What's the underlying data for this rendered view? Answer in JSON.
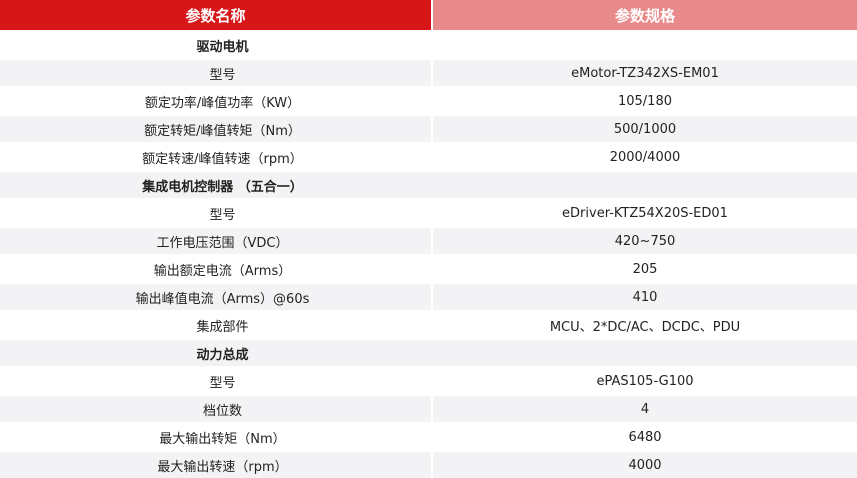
{
  "header": {
    "name": "参数名称",
    "spec": "参数规格"
  },
  "colors": {
    "header_left": "#d7161a",
    "header_right": "#e98a8a",
    "row_gray": "#f3f3f5"
  },
  "rows": [
    {
      "type": "section",
      "name": "驱动电机",
      "value": ""
    },
    {
      "type": "item",
      "name": "型号",
      "value": "eMotor-TZ342XS-EM01"
    },
    {
      "type": "item",
      "name": "额定功率/峰值功率（KW）",
      "value": "105/180"
    },
    {
      "type": "item",
      "name": "额定转矩/峰值转矩（Nm）",
      "value": "500/1000"
    },
    {
      "type": "item",
      "name": "额定转速/峰值转速（rpm）",
      "value": "2000/4000"
    },
    {
      "type": "section",
      "name": "集成电机控制器 （五合一）",
      "value": ""
    },
    {
      "type": "item",
      "name": "型号",
      "value": "eDriver-KTZ54X20S-ED01"
    },
    {
      "type": "item",
      "name": "工作电压范围（VDC）",
      "value": "420~750"
    },
    {
      "type": "item",
      "name": "输出额定电流（Arms）",
      "value": "205"
    },
    {
      "type": "item",
      "name": "输出峰值电流（Arms）@60s",
      "value": "410"
    },
    {
      "type": "item",
      "name": "集成部件",
      "value": "MCU、2*DC/AC、DCDC、PDU"
    },
    {
      "type": "section",
      "name": "动力总成",
      "value": ""
    },
    {
      "type": "item",
      "name": "型号",
      "value": "ePAS105-G100"
    },
    {
      "type": "item",
      "name": "档位数",
      "value": "4"
    },
    {
      "type": "item",
      "name": "最大输出转矩（Nm）",
      "value": "6480"
    },
    {
      "type": "item",
      "name": "最大输出转速（rpm）",
      "value": "4000"
    }
  ]
}
